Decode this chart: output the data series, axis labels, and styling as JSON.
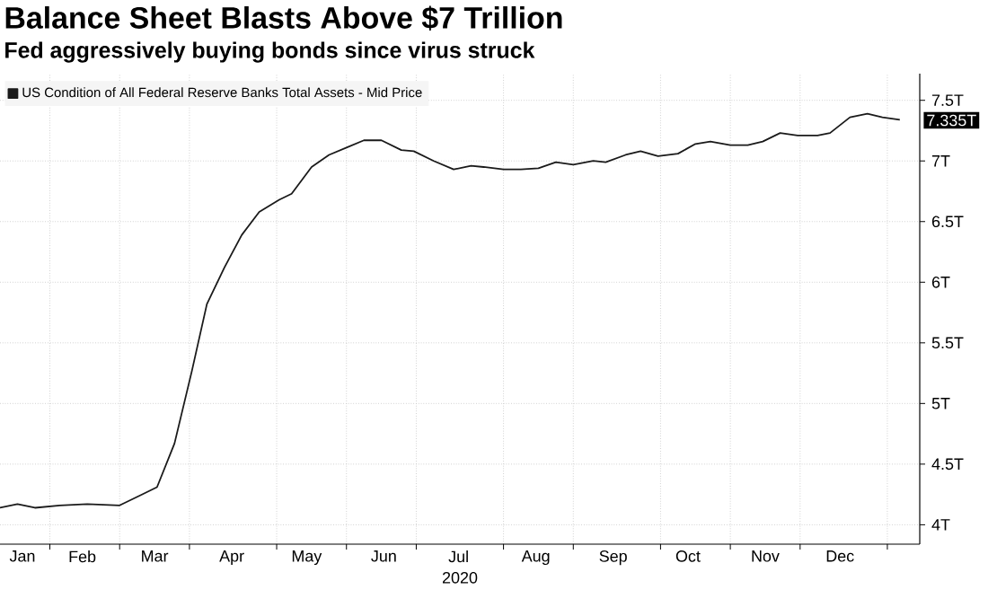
{
  "chart_data": {
    "type": "line",
    "title": "Balance Sheet Blasts Above $7 Trillion",
    "subtitle": "Fed aggressively buying bonds since virus struck",
    "xlabel": "2020",
    "x": [
      "2020-01-13",
      "2020-01-20",
      "2020-01-27",
      "2020-02-06",
      "2020-02-17",
      "2020-03-01",
      "2020-03-09",
      "2020-03-16",
      "2020-03-23",
      "2020-03-30",
      "2020-04-05",
      "2020-04-12",
      "2020-04-19",
      "2020-04-26",
      "2020-05-04",
      "2020-05-09",
      "2020-05-17",
      "2020-05-24",
      "2020-05-31",
      "2020-06-07",
      "2020-06-14",
      "2020-06-22",
      "2020-06-27",
      "2020-07-05",
      "2020-07-13",
      "2020-07-20",
      "2020-07-25",
      "2020-08-02",
      "2020-08-09",
      "2020-08-16",
      "2020-08-23",
      "2020-08-30",
      "2020-09-07",
      "2020-09-12",
      "2020-09-20",
      "2020-09-26",
      "2020-10-03",
      "2020-10-11",
      "2020-10-18",
      "2020-10-24",
      "2020-11-01",
      "2020-11-08",
      "2020-11-14",
      "2020-11-21",
      "2020-11-28",
      "2020-12-06",
      "2020-12-11",
      "2020-12-19",
      "2020-12-26",
      "2021-01-01",
      "2021-01-08"
    ],
    "series": [
      {
        "name": "US Condition of All Federal Reserve Banks Total Assets - Mid Price",
        "color": "#1a1a1a",
        "values": [
          4.14,
          4.17,
          4.14,
          4.16,
          4.17,
          4.16,
          4.24,
          4.31,
          4.67,
          5.27,
          5.82,
          6.12,
          6.39,
          6.58,
          6.68,
          6.73,
          6.95,
          7.05,
          7.11,
          7.17,
          7.17,
          7.09,
          7.08,
          7.0,
          6.93,
          6.96,
          6.95,
          6.93,
          6.93,
          6.94,
          6.99,
          6.97,
          7.0,
          6.99,
          7.05,
          7.08,
          7.04,
          7.06,
          7.14,
          7.16,
          7.13,
          7.13,
          7.16,
          7.23,
          7.21,
          7.21,
          7.23,
          7.36,
          7.39,
          7.36,
          7.34
        ]
      }
    ],
    "xlim": [
      "2020-01-13",
      "2021-01-16"
    ],
    "xticks": [
      {
        "value": "2020-01-22",
        "label": "Jan"
      },
      {
        "value": "2020-02-15",
        "label": "Feb"
      },
      {
        "value": "2020-03-15",
        "label": "Mar"
      },
      {
        "value": "2020-04-15",
        "label": "Apr"
      },
      {
        "value": "2020-05-15",
        "label": "May"
      },
      {
        "value": "2020-06-15",
        "label": "Jun"
      },
      {
        "value": "2020-07-15",
        "label": "Jul"
      },
      {
        "value": "2020-08-15",
        "label": "Aug"
      },
      {
        "value": "2020-09-15",
        "label": "Sep"
      },
      {
        "value": "2020-10-15",
        "label": "Oct"
      },
      {
        "value": "2020-11-15",
        "label": "Nov"
      },
      {
        "value": "2020-12-15",
        "label": "Dec"
      },
      {
        "value": "2020-02-02",
        "label": null
      },
      {
        "value": "2020-03-01",
        "label": null
      },
      {
        "value": "2020-03-29",
        "label": null
      },
      {
        "value": "2020-05-03",
        "label": null
      },
      {
        "value": "2020-05-31",
        "label": null
      },
      {
        "value": "2020-06-28",
        "label": null
      },
      {
        "value": "2020-08-02",
        "label": null
      },
      {
        "value": "2020-08-30",
        "label": null
      },
      {
        "value": "2020-10-04",
        "label": null
      },
      {
        "value": "2020-11-01",
        "label": null
      },
      {
        "value": "2020-11-29",
        "label": null
      },
      {
        "value": "2021-01-03",
        "label": null
      }
    ],
    "ylim": [
      3.84,
      7.72
    ],
    "yticks": [
      {
        "value": 4,
        "label": "4T"
      },
      {
        "value": 4.5,
        "label": "4.5T"
      },
      {
        "value": 5,
        "label": "5T"
      },
      {
        "value": 5.5,
        "label": "5.5T"
      },
      {
        "value": 6,
        "label": "6T"
      },
      {
        "value": 6.5,
        "label": "6.5T"
      },
      {
        "value": 7,
        "label": "7T"
      },
      {
        "value": 7.5,
        "label": "7.5T"
      }
    ],
    "annotations": [
      {
        "text": "7.335T",
        "x": "2021-01-08",
        "y": 7.335
      }
    ],
    "grid": true,
    "legend": "top left",
    "marker": "none",
    "line_style": "solid"
  }
}
